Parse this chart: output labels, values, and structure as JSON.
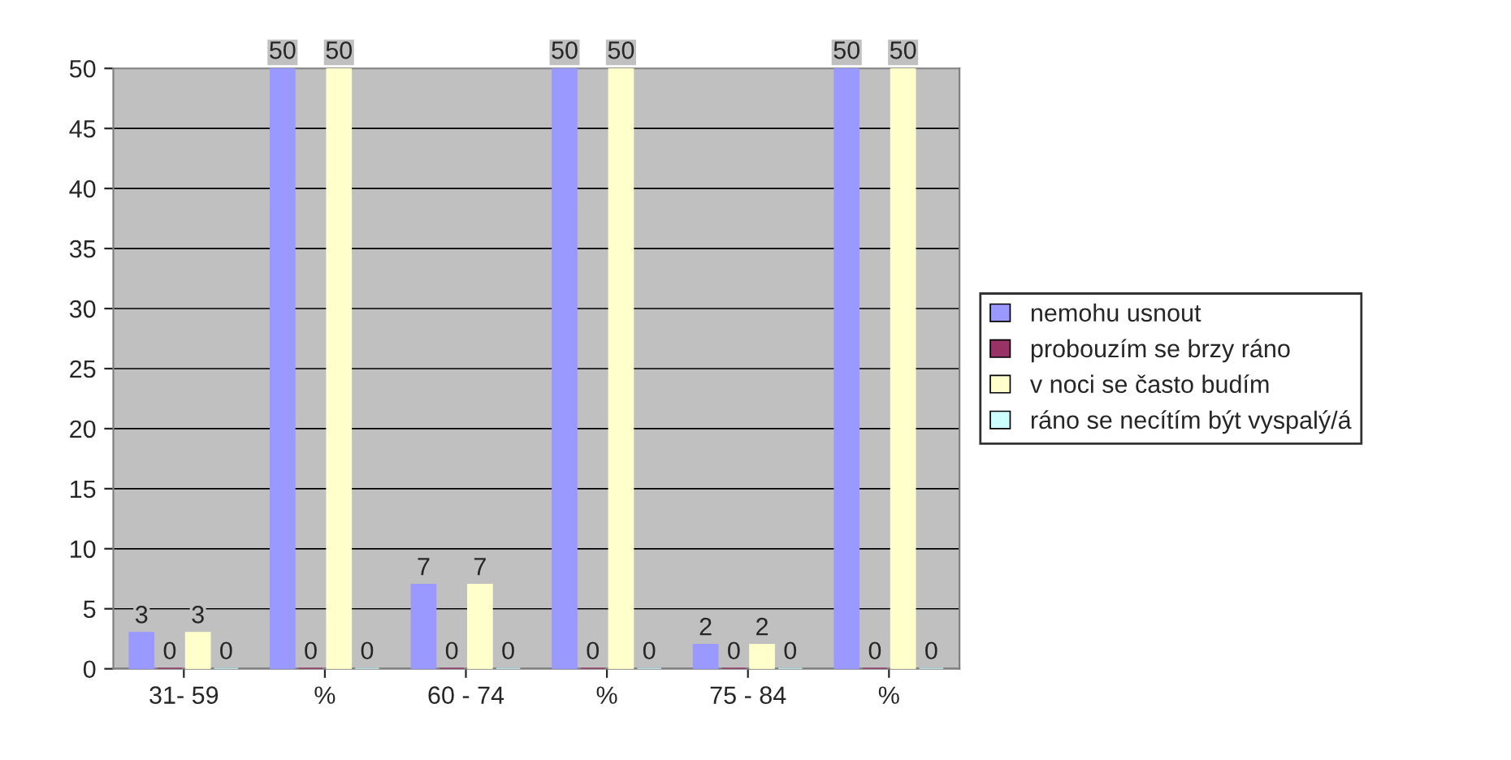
{
  "chart_data": {
    "type": "bar",
    "categories": [
      "31- 59",
      "%",
      "60 - 74",
      "%",
      "75 - 84",
      "%"
    ],
    "series": [
      {
        "name": "nemohu usnout",
        "color": "#9999ff",
        "values": [
          3,
          50,
          7,
          50,
          2,
          50
        ]
      },
      {
        "name": "probouzím se brzy ráno",
        "color": "#993366",
        "values": [
          0,
          0,
          0,
          0,
          0,
          0
        ]
      },
      {
        "name": "v noci se často budím",
        "color": "#ffffcc",
        "values": [
          3,
          50,
          7,
          50,
          2,
          50
        ]
      },
      {
        "name": "ráno se necítím být vyspalý/á",
        "color": "#ccffff",
        "values": [
          0,
          0,
          0,
          0,
          0,
          0
        ]
      }
    ],
    "ylim": [
      0,
      50
    ],
    "yticks": [
      0,
      5,
      10,
      15,
      20,
      25,
      30,
      35,
      40,
      45,
      50
    ],
    "grid": "y",
    "legend": "right",
    "data_labels": true
  }
}
